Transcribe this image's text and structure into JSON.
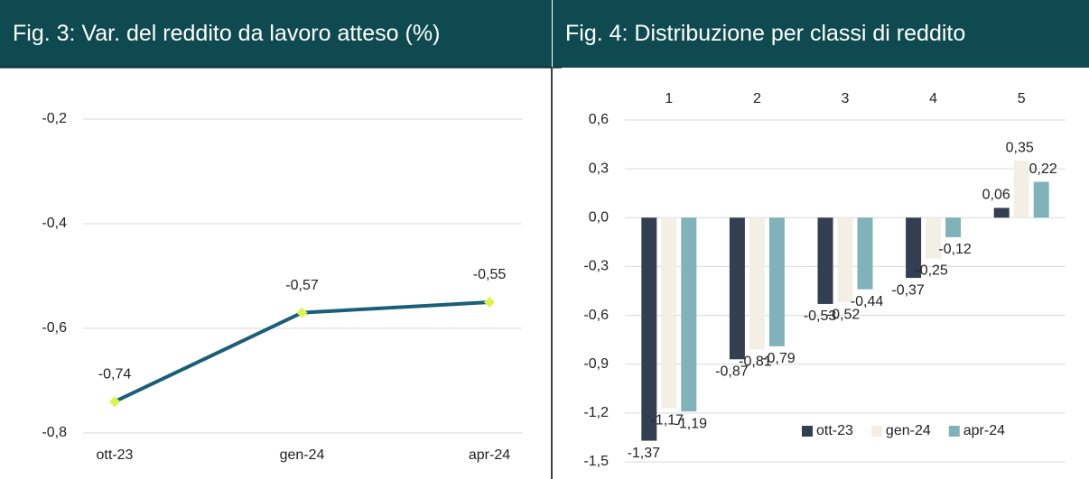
{
  "chart_data": [
    {
      "type": "line",
      "title": "Fig. 3: Var. del reddito da lavoro atteso (%)",
      "categories": [
        "ott-23",
        "gen-24",
        "apr-24"
      ],
      "series": [
        {
          "name": "reddito",
          "color": "#1b5e78",
          "marker_color": "#d8f549",
          "values": [
            -0.74,
            -0.57,
            -0.55
          ],
          "value_labels": [
            "-0,74",
            "-0,57",
            "-0,55"
          ]
        }
      ],
      "ylim": [
        -0.8,
        -0.2
      ],
      "yticks": [
        {
          "value": -0.8,
          "label": "-0,8"
        },
        {
          "value": -0.6,
          "label": "-0,6"
        },
        {
          "value": -0.4,
          "label": "-0,4"
        },
        {
          "value": -0.2,
          "label": "-0,2"
        }
      ],
      "grid": true
    },
    {
      "type": "bar",
      "title": "Fig. 4: Distribuzione per classi di reddito",
      "categories": [
        "1",
        "2",
        "3",
        "4",
        "5"
      ],
      "series": [
        {
          "name": "ott-23",
          "color": "#333e50",
          "values": [
            -1.37,
            -0.87,
            -0.53,
            -0.37,
            0.06
          ],
          "value_labels": [
            "-1,37",
            "-0,87",
            "-0,53",
            "-0,37",
            "0,06"
          ]
        },
        {
          "name": "gen-24",
          "color": "#f3efe5",
          "values": [
            -1.17,
            -0.81,
            -0.52,
            -0.25,
            0.35
          ],
          "value_labels": [
            "-1,17",
            "-0,81",
            "-0,52",
            "-0,25",
            "0,35"
          ]
        },
        {
          "name": "apr-24",
          "color": "#80b2b9",
          "values": [
            -1.19,
            -0.79,
            -0.44,
            -0.12,
            0.22
          ],
          "value_labels": [
            "-1,19",
            "-0,79",
            "-0,44",
            "-0,12",
            "0,22"
          ]
        }
      ],
      "ylim": [
        -1.5,
        0.6
      ],
      "yticks": [
        {
          "value": -1.5,
          "label": "-1,5"
        },
        {
          "value": -1.2,
          "label": "-1,2"
        },
        {
          "value": -0.9,
          "label": "-0,9"
        },
        {
          "value": -0.6,
          "label": "-0,6"
        },
        {
          "value": -0.3,
          "label": "-0,3"
        },
        {
          "value": 0.0,
          "label": "0,0"
        },
        {
          "value": 0.3,
          "label": "0,3"
        },
        {
          "value": 0.6,
          "label": "0,6"
        }
      ],
      "grid": true,
      "legend": "lower right"
    }
  ]
}
